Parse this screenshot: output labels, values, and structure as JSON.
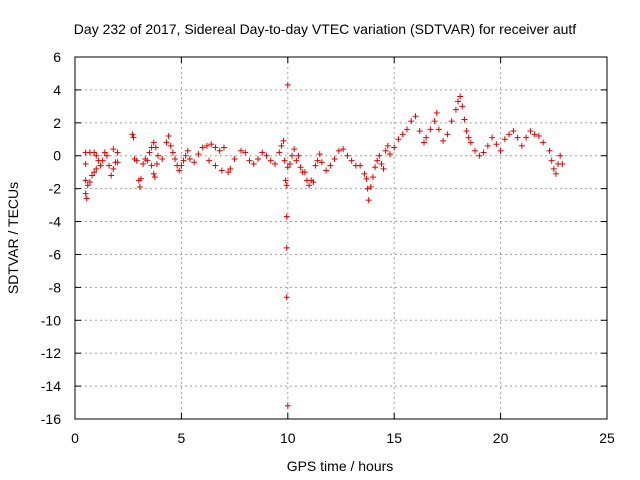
{
  "chart_data": {
    "type": "scatter",
    "title": "Day 232 of 2017, Sidereal Day-to-day VTEC variation (SDTVAR) for receiver autf",
    "xlabel": "GPS time / hours",
    "ylabel": "SDTVAR / TECUs",
    "xlim": [
      0,
      25
    ],
    "ylim": [
      -16,
      6
    ],
    "grid": true,
    "marker": "+",
    "marker_color": "#e00000",
    "x_ticks": [
      "0",
      "5",
      "10",
      "15",
      "20",
      "25"
    ],
    "y_ticks": [
      "6",
      "4",
      "2",
      "0",
      "-2",
      "-4",
      "-6",
      "-8",
      "-10",
      "-12",
      "-14",
      "-16"
    ],
    "x_tick_values": [
      0,
      5,
      10,
      15,
      20,
      25
    ],
    "y_tick_values": [
      6,
      4,
      2,
      0,
      -2,
      -4,
      -6,
      -8,
      -10,
      -12,
      -14,
      -16
    ],
    "series": [
      {
        "name": "SDTVAR",
        "points": [
          [
            0.5,
            0.2
          ],
          [
            0.5,
            -0.5
          ],
          [
            0.5,
            -1.5
          ],
          [
            0.5,
            -2.3
          ],
          [
            0.55,
            -2.6
          ],
          [
            0.6,
            -1.8
          ],
          [
            0.7,
            -1.6
          ],
          [
            0.8,
            -1.2
          ],
          [
            0.9,
            -1.0
          ],
          [
            1.0,
            -0.8
          ],
          [
            0.7,
            0.2
          ],
          [
            0.9,
            0.2
          ],
          [
            1.0,
            0.0
          ],
          [
            1.1,
            -0.3
          ],
          [
            1.2,
            -0.6
          ],
          [
            1.3,
            -0.3
          ],
          [
            1.4,
            0.2
          ],
          [
            1.5,
            0.0
          ],
          [
            1.6,
            -0.6
          ],
          [
            1.7,
            -1.2
          ],
          [
            1.8,
            -0.8
          ],
          [
            1.9,
            -0.4
          ],
          [
            2.0,
            0.2
          ],
          [
            2.0,
            -0.4
          ],
          [
            1.8,
            0.4
          ],
          [
            2.7,
            1.3
          ],
          [
            2.75,
            1.1
          ],
          [
            2.8,
            -0.2
          ],
          [
            2.9,
            -0.3
          ],
          [
            3.0,
            -1.5
          ],
          [
            3.05,
            -1.9
          ],
          [
            3.1,
            -1.4
          ],
          [
            3.2,
            -0.5
          ],
          [
            3.3,
            -0.2
          ],
          [
            3.4,
            -0.3
          ],
          [
            3.5,
            0.2
          ],
          [
            3.6,
            0.5
          ],
          [
            3.7,
            0.8
          ],
          [
            3.8,
            0.5
          ],
          [
            3.9,
            0.0
          ],
          [
            3.6,
            -0.6
          ],
          [
            3.7,
            -1.1
          ],
          [
            3.75,
            -1.3
          ],
          [
            3.85,
            -0.5
          ],
          [
            4.1,
            -0.2
          ],
          [
            4.3,
            0.8
          ],
          [
            4.4,
            1.2
          ],
          [
            4.5,
            0.6
          ],
          [
            4.6,
            0.2
          ],
          [
            4.7,
            -0.2
          ],
          [
            4.8,
            -0.6
          ],
          [
            4.9,
            -0.9
          ],
          [
            5.0,
            -0.6
          ],
          [
            5.1,
            -0.3
          ],
          [
            5.2,
            0.0
          ],
          [
            5.3,
            0.3
          ],
          [
            5.4,
            -0.2
          ],
          [
            5.6,
            -0.4
          ],
          [
            5.8,
            0.1
          ],
          [
            6.0,
            0.5
          ],
          [
            6.2,
            0.6
          ],
          [
            6.4,
            0.7
          ],
          [
            6.6,
            0.5
          ],
          [
            6.8,
            0.3
          ],
          [
            7.0,
            0.5
          ],
          [
            6.3,
            -0.3
          ],
          [
            6.6,
            -0.6
          ],
          [
            6.9,
            -0.9
          ],
          [
            7.2,
            -1.0
          ],
          [
            7.3,
            -0.8
          ],
          [
            7.5,
            -0.2
          ],
          [
            7.8,
            0.3
          ],
          [
            8.0,
            0.2
          ],
          [
            8.2,
            -0.3
          ],
          [
            8.4,
            -0.5
          ],
          [
            8.6,
            -0.2
          ],
          [
            8.8,
            0.2
          ],
          [
            9.0,
            0.0
          ],
          [
            9.2,
            -0.3
          ],
          [
            9.4,
            -0.5
          ],
          [
            9.6,
            0.2
          ],
          [
            9.7,
            0.6
          ],
          [
            9.8,
            0.9
          ],
          [
            9.85,
            -0.3
          ],
          [
            9.9,
            -1.5
          ],
          [
            9.95,
            -1.8
          ],
          [
            10.0,
            -0.7
          ],
          [
            10.1,
            -0.5
          ],
          [
            10.2,
            0.0
          ],
          [
            10.3,
            0.4
          ],
          [
            10.4,
            -0.3
          ],
          [
            10.5,
            0.0
          ],
          [
            10.6,
            -0.7
          ],
          [
            10.7,
            -1.0
          ],
          [
            10.8,
            -1.0
          ],
          [
            10.9,
            -1.5
          ],
          [
            11.0,
            -1.8
          ],
          [
            11.1,
            -1.5
          ],
          [
            11.2,
            -1.6
          ],
          [
            11.3,
            -0.6
          ],
          [
            11.4,
            -0.3
          ],
          [
            11.5,
            0.1
          ],
          [
            11.6,
            -0.4
          ],
          [
            11.8,
            -0.9
          ],
          [
            12.0,
            -0.6
          ],
          [
            12.2,
            -0.2
          ],
          [
            12.4,
            0.3
          ],
          [
            12.6,
            0.4
          ],
          [
            12.8,
            0.0
          ],
          [
            13.0,
            -0.3
          ],
          [
            13.2,
            -0.6
          ],
          [
            13.4,
            -0.6
          ],
          [
            13.6,
            -1.1
          ],
          [
            13.7,
            -1.4
          ],
          [
            13.75,
            -2.0
          ],
          [
            13.8,
            -2.7
          ],
          [
            13.9,
            -1.9
          ],
          [
            14.0,
            -1.3
          ],
          [
            14.1,
            -0.7
          ],
          [
            14.2,
            -0.3
          ],
          [
            14.3,
            0.0
          ],
          [
            14.4,
            -0.5
          ],
          [
            14.5,
            -0.8
          ],
          [
            14.6,
            0.3
          ],
          [
            14.7,
            0.6
          ],
          [
            14.8,
            0.1
          ],
          [
            15.0,
            0.5
          ],
          [
            15.2,
            1.0
          ],
          [
            15.4,
            1.3
          ],
          [
            15.6,
            1.6
          ],
          [
            15.8,
            2.1
          ],
          [
            16.0,
            2.4
          ],
          [
            16.2,
            1.5
          ],
          [
            16.4,
            0.8
          ],
          [
            16.5,
            1.1
          ],
          [
            16.7,
            1.6
          ],
          [
            16.9,
            2.1
          ],
          [
            17.0,
            2.6
          ],
          [
            17.1,
            1.6
          ],
          [
            17.3,
            0.9
          ],
          [
            17.5,
            1.3
          ],
          [
            17.7,
            2.1
          ],
          [
            17.9,
            2.8
          ],
          [
            18.0,
            3.3
          ],
          [
            18.1,
            3.6
          ],
          [
            18.2,
            3.0
          ],
          [
            18.3,
            2.2
          ],
          [
            18.4,
            1.5
          ],
          [
            18.5,
            1.1
          ],
          [
            18.6,
            0.8
          ],
          [
            18.8,
            0.3
          ],
          [
            19.0,
            0.0
          ],
          [
            19.2,
            0.2
          ],
          [
            19.4,
            0.6
          ],
          [
            19.6,
            1.1
          ],
          [
            19.8,
            0.7
          ],
          [
            20.0,
            0.3
          ],
          [
            20.2,
            1.0
          ],
          [
            20.4,
            1.3
          ],
          [
            20.6,
            1.5
          ],
          [
            20.8,
            1.1
          ],
          [
            21.0,
            0.6
          ],
          [
            21.2,
            1.1
          ],
          [
            21.4,
            1.5
          ],
          [
            21.6,
            1.3
          ],
          [
            21.8,
            1.2
          ],
          [
            22.0,
            0.8
          ],
          [
            22.3,
            0.3
          ],
          [
            22.4,
            -0.3
          ],
          [
            22.5,
            -0.8
          ],
          [
            22.6,
            -1.1
          ],
          [
            22.7,
            -0.5
          ],
          [
            22.8,
            0.0
          ],
          [
            22.9,
            -0.5
          ],
          [
            10.0,
            4.3
          ],
          [
            9.95,
            -3.7
          ],
          [
            9.95,
            -5.6
          ],
          [
            9.95,
            -8.6
          ],
          [
            10.0,
            -15.2
          ]
        ]
      }
    ]
  }
}
